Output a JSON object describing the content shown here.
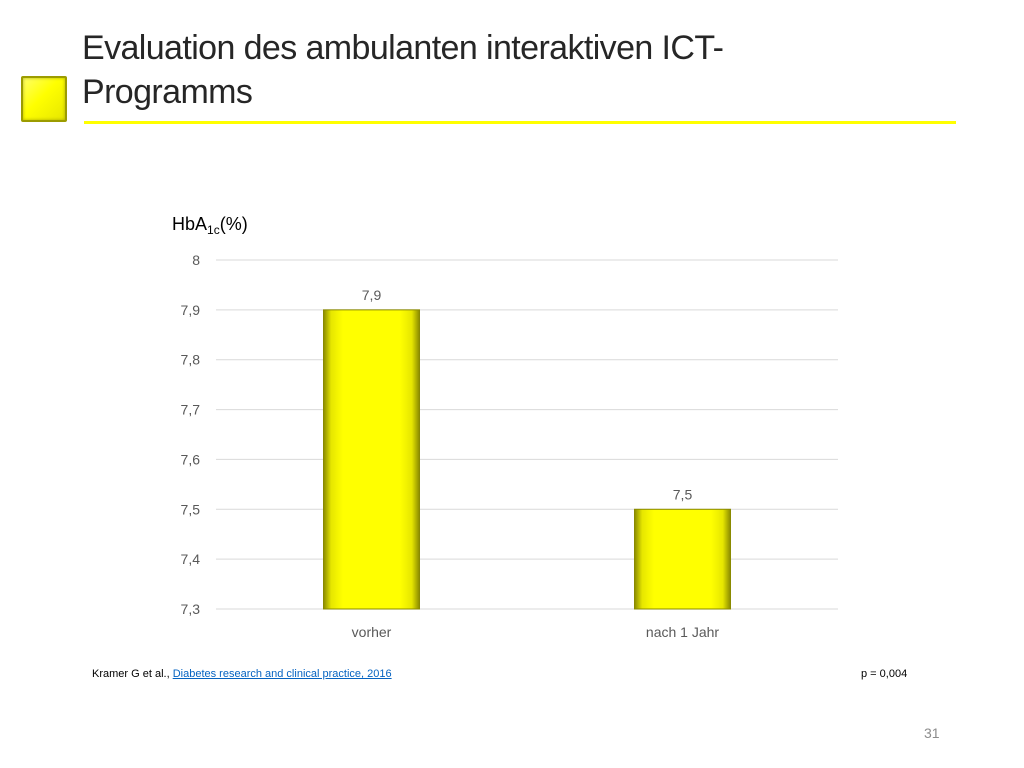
{
  "slide": {
    "title": "Evaluation des ambulanten interaktiven ICT-Programms",
    "page_number": "31"
  },
  "colors": {
    "accent": "#ffff00",
    "bar_edge": "#8a8a00",
    "gridline": "#d9d9d9",
    "axis_text": "#595959",
    "link": "#0563c1"
  },
  "chart_data": {
    "type": "bar",
    "title": "",
    "ylabel": {
      "main": "HbA",
      "subscript": "1c",
      "suffix": "(%)"
    },
    "xlabel": "",
    "categories": [
      "vorher",
      "nach 1 Jahr"
    ],
    "values": [
      7.9,
      7.5
    ],
    "data_labels": [
      "7,9",
      "7,5"
    ],
    "ylim": [
      7.3,
      8.0
    ],
    "yticks": [
      7.3,
      7.4,
      7.5,
      7.6,
      7.7,
      7.8,
      7.9,
      8.0
    ],
    "ytick_labels": [
      "7,3",
      "7,4",
      "7,5",
      "7,6",
      "7,7",
      "7,8",
      "7,9",
      "8"
    ],
    "grid": true,
    "legend": "none"
  },
  "footer": {
    "citation_prefix": "Kramer G et al., ",
    "citation_link": "Diabetes research and clinical practice, 2016",
    "p_value": "p = 0,004"
  }
}
